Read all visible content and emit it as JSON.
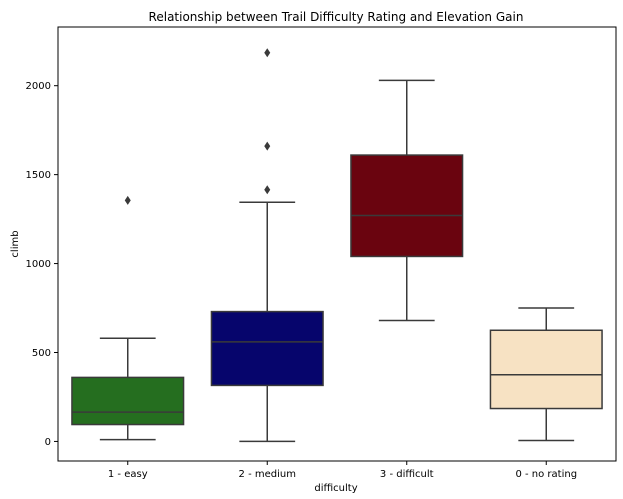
{
  "chart_data": {
    "type": "box",
    "title": "Relationship between Trail Difficulty Rating and Elevation Gain",
    "xlabel": "difficulty",
    "ylabel": "climb",
    "ylim": [
      -110,
      2330
    ],
    "yticks": [
      0,
      500,
      1000,
      1500,
      2000
    ],
    "grid": false,
    "categories": [
      "1 - easy",
      "2 - medium",
      "3 - difficult",
      "0 - no rating"
    ],
    "boxes": [
      {
        "category": "1 - easy",
        "color": "#256e1f",
        "whisker_low": 10,
        "q1": 95,
        "median": 165,
        "q3": 360,
        "whisker_high": 580,
        "outliers": [
          1355
        ]
      },
      {
        "category": "2 - medium",
        "color": "#06056c",
        "whisker_low": 0,
        "q1": 315,
        "median": 560,
        "q3": 730,
        "whisker_high": 1345,
        "outliers": [
          1415,
          1660,
          2185
        ]
      },
      {
        "category": "3 - difficult",
        "color": "#6a040f",
        "whisker_low": 680,
        "q1": 1040,
        "median": 1270,
        "q3": 1610,
        "whisker_high": 2030,
        "outliers": []
      },
      {
        "category": "0 - no rating",
        "color": "#f7e2c3",
        "whisker_low": 5,
        "q1": 185,
        "median": 375,
        "q3": 625,
        "whisker_high": 750,
        "outliers": []
      }
    ]
  }
}
